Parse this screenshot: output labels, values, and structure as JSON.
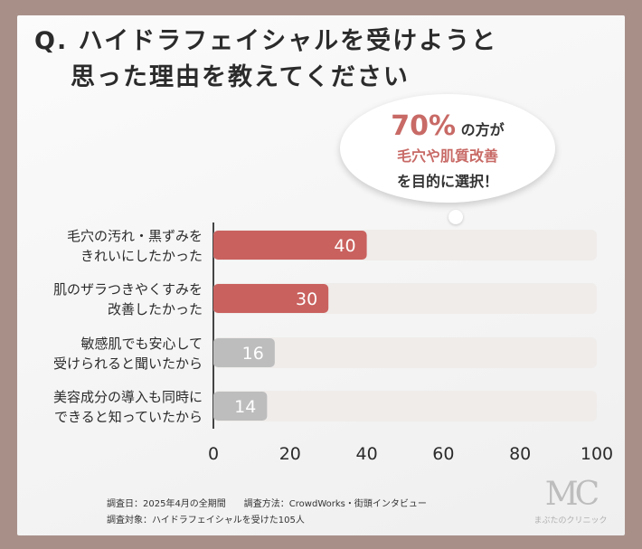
{
  "title_line1": "Q. ハイドラフェイシャルを受けようと",
  "title_line2": "思った理由を教えてください",
  "callout": {
    "pct": "70%",
    "pct_suffix": " の方が",
    "line2": "毛穴や肌質改善",
    "line3": "を目的に選択！"
  },
  "footer": {
    "line1": "調査日：2025年4月の全期間　　調査方法：CrowdWorks・街頭インタビュー",
    "line2": "調査対象：ハイドラフェイシャルを受けた105人"
  },
  "logo": {
    "mark": "MC",
    "text": "まぶたのクリニック"
  },
  "colors": {
    "highlight": "#c9615e",
    "muted": "#bdbdbd",
    "track": "#efecea"
  },
  "chart_data": {
    "type": "bar",
    "orientation": "horizontal",
    "categories": [
      [
        "毛穴の汚れ・黒ずみを",
        "きれいにしたかった"
      ],
      [
        "肌のザラつきやくすみを",
        "改善したかった"
      ],
      [
        "敏感肌でも安心して",
        "受けられると聞いたから"
      ],
      [
        "美容成分の導入も同時に",
        "できると知っていたから"
      ]
    ],
    "values": [
      40,
      30,
      16,
      14
    ],
    "highlighted": [
      true,
      true,
      false,
      false
    ],
    "xlim": [
      0,
      100
    ],
    "xticks": [
      0,
      20,
      40,
      60,
      80,
      100
    ]
  }
}
